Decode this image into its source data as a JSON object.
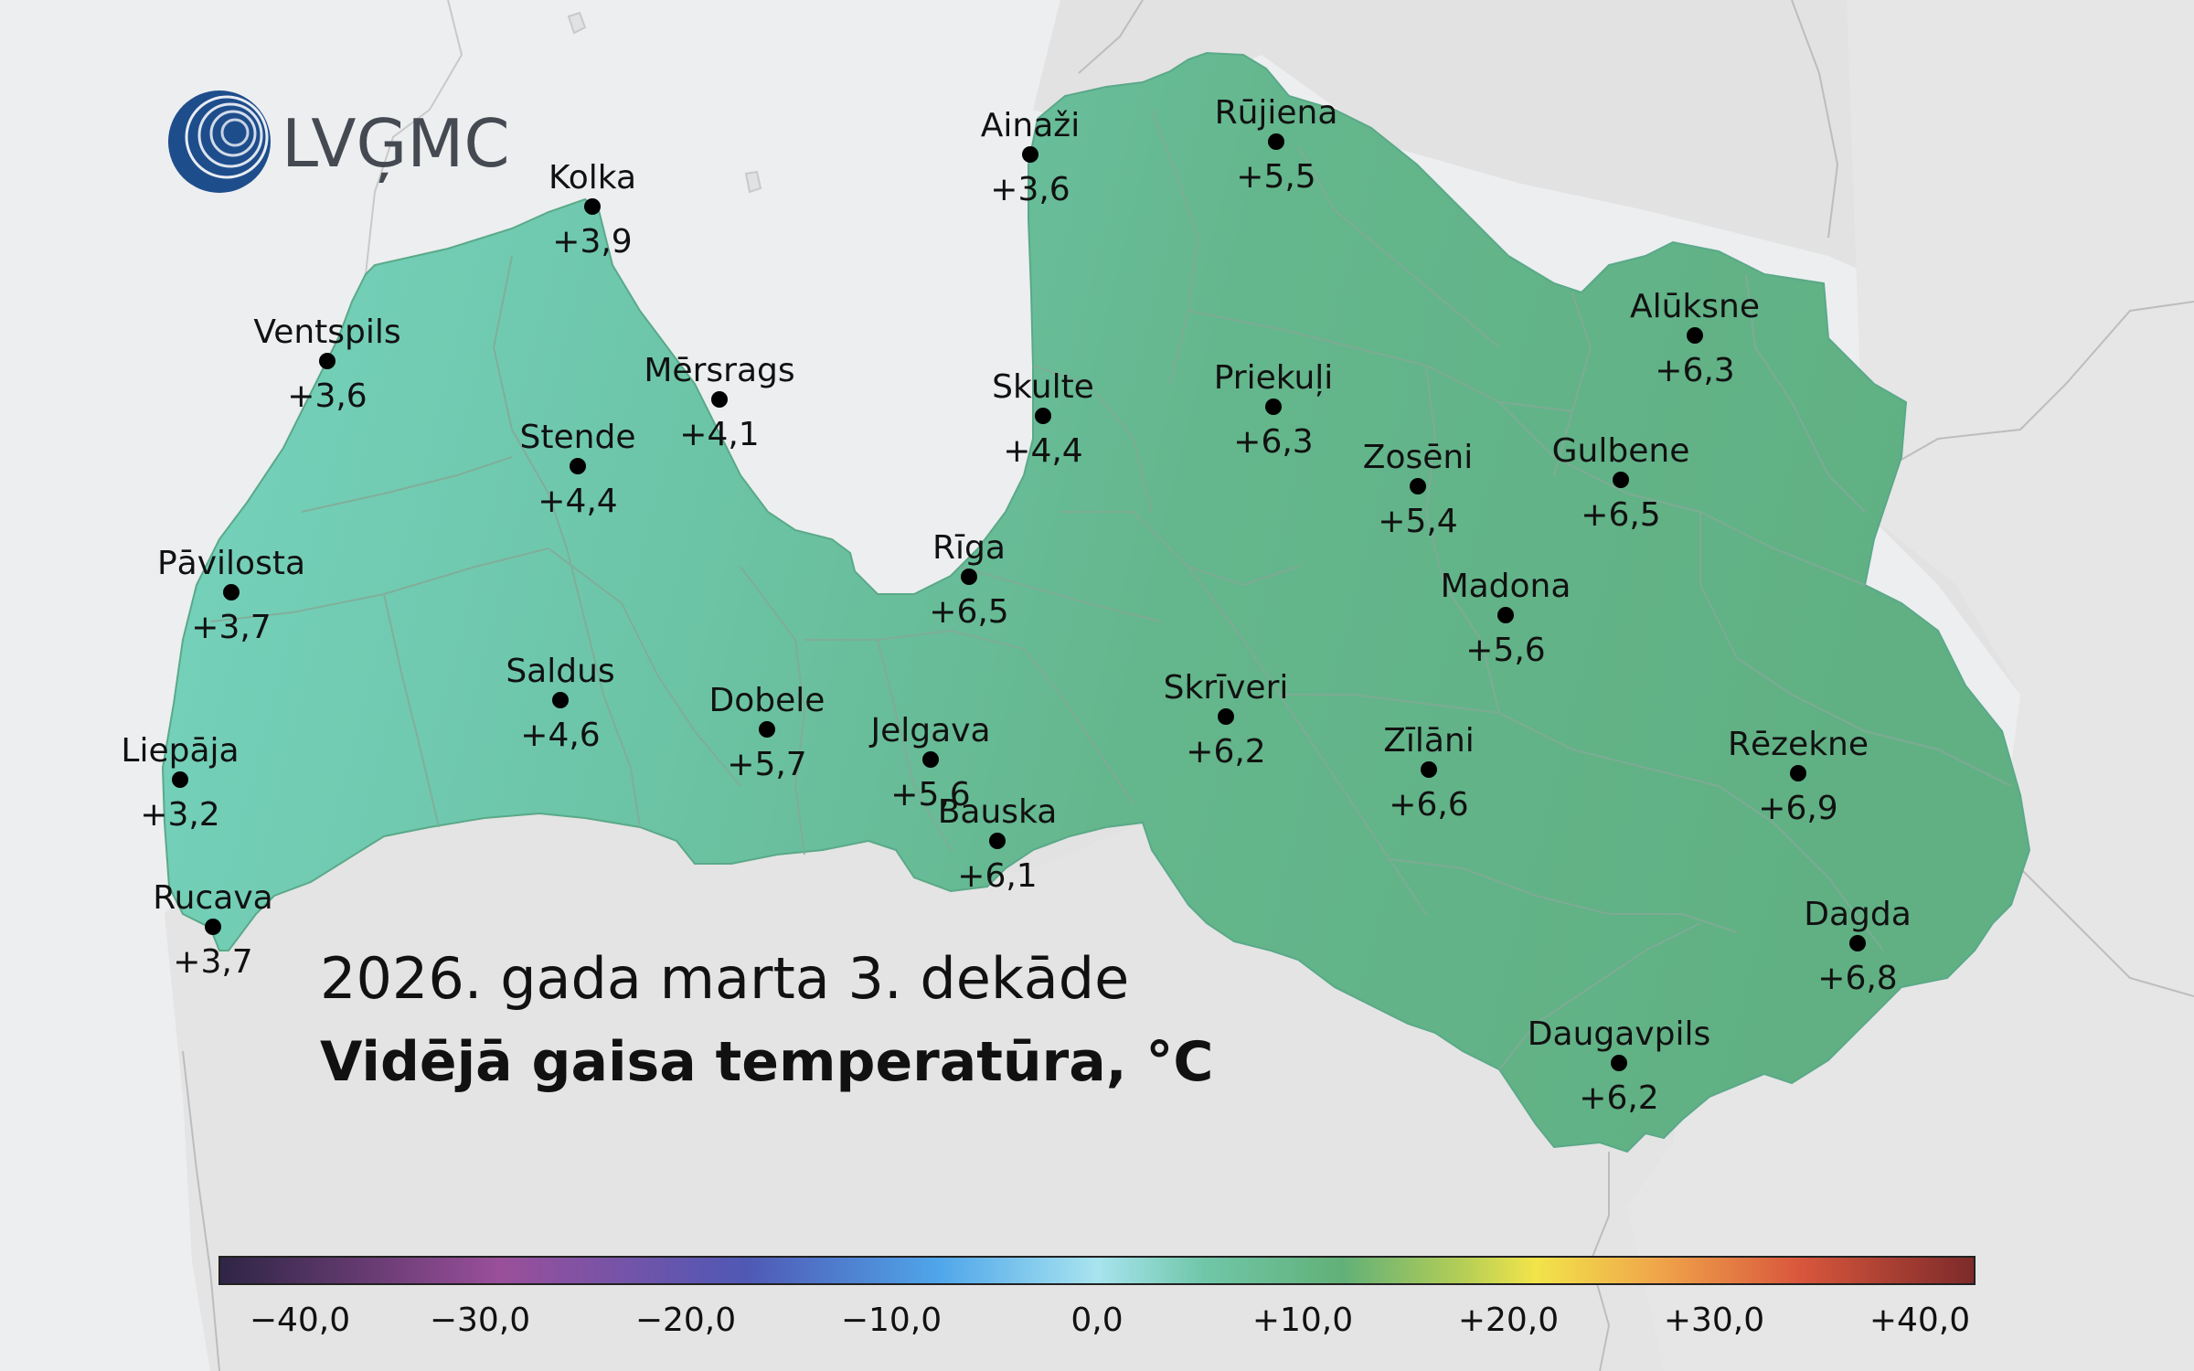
{
  "logo": {
    "text": "LVĢMC"
  },
  "title": {
    "line1": "2026. gada marta 3. dekāde",
    "line2": "Vidējā gaisa temperatūra, °C"
  },
  "stations": [
    {
      "name": "Kolka",
      "value": "+3,9"
    },
    {
      "name": "Ventspils",
      "value": "+3,6"
    },
    {
      "name": "Mērsrags",
      "value": "+4,1"
    },
    {
      "name": "Stende",
      "value": "+4,4"
    },
    {
      "name": "Pāvilosta",
      "value": "+3,7"
    },
    {
      "name": "Saldus",
      "value": "+4,6"
    },
    {
      "name": "Liepāja",
      "value": "+3,2"
    },
    {
      "name": "Rucava",
      "value": "+3,7"
    },
    {
      "name": "Dobele",
      "value": "+5,7"
    },
    {
      "name": "Jelgava",
      "value": "+5,6"
    },
    {
      "name": "Bauska",
      "value": "+6,1"
    },
    {
      "name": "Rīga",
      "value": "+6,5"
    },
    {
      "name": "Ainaži",
      "value": "+3,6"
    },
    {
      "name": "Skulte",
      "value": "+4,4"
    },
    {
      "name": "Rūjiena",
      "value": "+5,5"
    },
    {
      "name": "Priekuļi",
      "value": "+6,3"
    },
    {
      "name": "Zosēni",
      "value": "+5,4"
    },
    {
      "name": "Alūksne",
      "value": "+6,3"
    },
    {
      "name": "Gulbene",
      "value": "+6,5"
    },
    {
      "name": "Madona",
      "value": "+5,6"
    },
    {
      "name": "Skrīveri",
      "value": "+6,2"
    },
    {
      "name": "Zīlāni",
      "value": "+6,6"
    },
    {
      "name": "Rēzekne",
      "value": "+6,9"
    },
    {
      "name": "Dagda",
      "value": "+6,8"
    },
    {
      "name": "Daugavpils",
      "value": "+6,2"
    }
  ],
  "colorbar": {
    "ticks": [
      "−40,0",
      "−30,0",
      "−20,0",
      "−10,0",
      "0,0",
      "+10,0",
      "+20,0",
      "+30,0",
      "+40,0"
    ]
  },
  "colors": {
    "sea": "#eceef0",
    "neighbor_land": "#e2e2e2",
    "latvia_west": "#74d2bd",
    "latvia_east": "#62b386",
    "logo_blue": "#1e4d8c"
  }
}
